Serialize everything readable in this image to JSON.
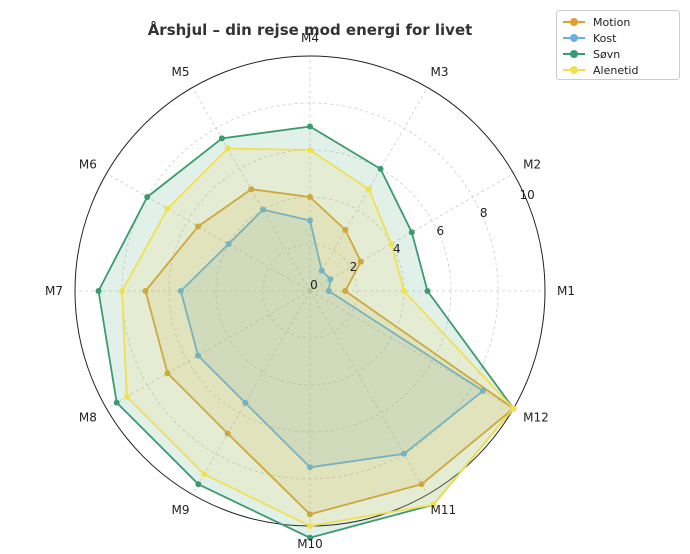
{
  "chart_data": {
    "type": "radar",
    "title": "Årshjul – din rejse mod energi for livet",
    "categories": [
      "M1",
      "M2",
      "M3",
      "M4",
      "M5",
      "M6",
      "M7",
      "M8",
      "M9",
      "M10",
      "M11",
      "M12"
    ],
    "rlim": [
      0,
      10
    ],
    "r_ticks": [
      0,
      2,
      4,
      6,
      8,
      10
    ],
    "grid": true,
    "legend_position": "top-right",
    "series": [
      {
        "name": "Motion",
        "color": "#e0a030",
        "values": [
          1.5,
          2.5,
          3.0,
          4.0,
          5.0,
          5.5,
          7.0,
          7.0,
          7.0,
          9.5,
          9.5,
          10.0
        ]
      },
      {
        "name": "Kost",
        "color": "#6aaee0",
        "values": [
          0.8,
          1.0,
          1.0,
          3.0,
          4.0,
          4.0,
          5.5,
          5.5,
          5.5,
          7.5,
          8.0,
          8.5
        ]
      },
      {
        "name": "Søvn",
        "color": "#3c9a70",
        "values": [
          5.0,
          5.0,
          6.0,
          7.0,
          7.5,
          8.0,
          9.0,
          9.5,
          9.5,
          10.5,
          10.5,
          10.0
        ]
      },
      {
        "name": "Alenetid",
        "color": "#f0e050",
        "values": [
          4.0,
          4.0,
          5.0,
          6.0,
          7.0,
          7.0,
          8.0,
          9.0,
          9.0,
          10.0,
          10.5,
          10.0
        ]
      }
    ]
  }
}
